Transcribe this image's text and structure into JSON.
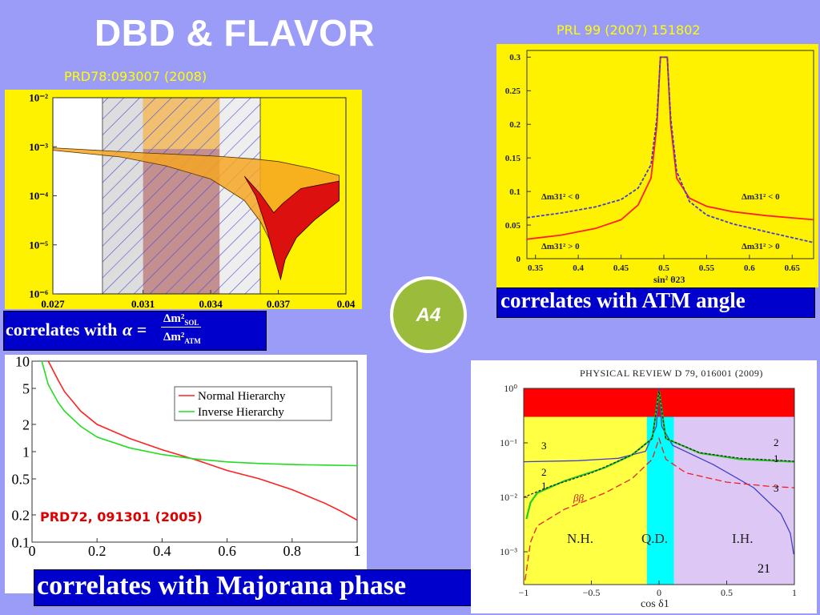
{
  "slide": {
    "title": "DBD & FLAVOR",
    "badge": "A4",
    "page_number": "21",
    "colors": {
      "background": "#9b9cf8",
      "ref_text": "#ffff00",
      "banner": "#0000cc",
      "badge": "#9bbb3a"
    }
  },
  "panels": {
    "top_left": {
      "ref": "PRD78:093007 (2008)",
      "banner_prefix": "correlates with",
      "banner_formula": "α = Δm²SOL / Δm²ATM"
    },
    "top_right": {
      "ref": "PRL 99 (2007) 151802",
      "banner": "correlates with ATM angle",
      "xlabel": "sin² θ23",
      "annotations": [
        "Δm31² < 0",
        "Δm31² > 0",
        "Δm31² < 0",
        "Δm31² > 0"
      ]
    },
    "bottom_left": {
      "ref": "PRD72, 091301 (2005)",
      "banner": "correlates with Majorana phase",
      "legend": [
        "Normal Hierarchy",
        "Inverse Hierarchy"
      ]
    },
    "bottom_right": {
      "header": "PHYSICAL REVIEW D 79, 016001 (2009)",
      "xlabel": "cos δ1",
      "regions": [
        "N.H.",
        "Q.D.",
        "I.H."
      ],
      "curve_labels": [
        "3",
        "2",
        "1",
        "ββ",
        "2",
        "1",
        "3"
      ]
    }
  },
  "chart_data": [
    {
      "id": "alpha_plot",
      "type": "area",
      "x_ticks": [
        "0.027",
        "0.031",
        "0.034",
        "0.037",
        "0.04"
      ],
      "y_ticks": [
        "10⁻²",
        "10⁻³",
        "10⁻⁴",
        "10⁻⁵",
        "10⁻⁶"
      ],
      "xlim": [
        0.027,
        0.04
      ],
      "ylim": [
        1e-06,
        0.01
      ],
      "log_y": true,
      "band_upper": [
        [
          0.027,
          0.00095
        ],
        [
          0.031,
          0.00075
        ],
        [
          0.034,
          0.00065
        ],
        [
          0.0345,
          0.00063
        ],
        [
          0.036,
          0.00056
        ],
        [
          0.037,
          0.0005
        ],
        [
          0.0385,
          0.00036
        ],
        [
          0.0397,
          0.00026
        ]
      ],
      "band_lower": [
        [
          0.027,
          0.00085
        ],
        [
          0.03,
          0.00062
        ],
        [
          0.032,
          0.00041
        ],
        [
          0.034,
          0.00022
        ],
        [
          0.0355,
          8e-05
        ],
        [
          0.0362,
          3e-05
        ],
        [
          0.0366,
          1.3e-05
        ],
        [
          0.0368,
          6e-06
        ],
        [
          0.0371,
          2e-06
        ],
        [
          0.0373,
          5e-06
        ],
        [
          0.0378,
          1.4e-05
        ],
        [
          0.0386,
          3.2e-05
        ],
        [
          0.0397,
          8e-05
        ]
      ],
      "red_upper": [
        [
          0.0355,
          0.00025
        ],
        [
          0.0362,
          0.00011
        ],
        [
          0.0368,
          4.5e-05
        ],
        [
          0.0372,
          7e-05
        ],
        [
          0.038,
          0.00014
        ],
        [
          0.0397,
          0.0002
        ]
      ],
      "red_region": [
        [
          0.0355,
          0.00025
        ],
        [
          0.036,
          0.0001
        ],
        [
          0.0365,
          2e-05
        ],
        [
          0.0368,
          6e-06
        ],
        [
          0.0371,
          2e-06
        ],
        [
          0.0373,
          5e-06
        ],
        [
          0.0378,
          1.4e-05
        ],
        [
          0.0386,
          3.2e-05
        ],
        [
          0.0397,
          8e-05
        ]
      ]
    },
    {
      "id": "atm_angle_plot",
      "type": "line",
      "x_ticks": [
        "0.35",
        "0.4",
        "0.45",
        "0.5",
        "0.55",
        "0.6",
        "0.65"
      ],
      "y_ticks": [
        "0",
        "0.05",
        "0.1",
        "0.15",
        "0.2",
        "0.25",
        "0.3"
      ],
      "xlim": [
        0.34,
        0.675
      ],
      "ylim": [
        0,
        0.31
      ],
      "series": [
        {
          "color": "#ff2020",
          "dash": false,
          "points": [
            [
              0.34,
              0.029
            ],
            [
              0.38,
              0.035
            ],
            [
              0.42,
              0.045
            ],
            [
              0.45,
              0.058
            ],
            [
              0.47,
              0.08
            ],
            [
              0.485,
              0.12
            ],
            [
              0.492,
              0.2
            ],
            [
              0.496,
              0.3
            ],
            [
              0.504,
              0.3
            ],
            [
              0.508,
              0.2
            ],
            [
              0.515,
              0.12
            ],
            [
              0.53,
              0.09
            ],
            [
              0.55,
              0.078
            ],
            [
              0.58,
              0.07
            ],
            [
              0.62,
              0.064
            ],
            [
              0.675,
              0.058
            ]
          ]
        },
        {
          "color": "#4040d0",
          "dash": true,
          "points": [
            [
              0.34,
              0.061
            ],
            [
              0.38,
              0.068
            ],
            [
              0.42,
              0.077
            ],
            [
              0.45,
              0.088
            ],
            [
              0.47,
              0.105
            ],
            [
              0.485,
              0.14
            ],
            [
              0.492,
              0.21
            ],
            [
              0.496,
              0.3
            ],
            [
              0.504,
              0.3
            ],
            [
              0.508,
              0.21
            ],
            [
              0.515,
              0.13
            ],
            [
              0.53,
              0.085
            ],
            [
              0.55,
              0.065
            ],
            [
              0.58,
              0.052
            ],
            [
              0.62,
              0.04
            ],
            [
              0.675,
              0.024
            ]
          ]
        }
      ]
    },
    {
      "id": "majorana_plot",
      "type": "line",
      "x_ticks": [
        "0",
        "0.2",
        "0.4",
        "0.6",
        "0.8",
        "1"
      ],
      "y_ticks": [
        "10",
        "5",
        "2",
        "1",
        "0.5",
        "0.2",
        "0.1"
      ],
      "xlim": [
        0,
        1
      ],
      "ylim": [
        0.1,
        10
      ],
      "log_y": true,
      "series": [
        {
          "name": "Normal Hierarchy",
          "color": "#ff2020",
          "points": [
            [
              0.05,
              10
            ],
            [
              0.08,
              6.2
            ],
            [
              0.1,
              4.6
            ],
            [
              0.15,
              2.8
            ],
            [
              0.2,
              2.0
            ],
            [
              0.3,
              1.4
            ],
            [
              0.4,
              1.05
            ],
            [
              0.5,
              0.82
            ],
            [
              0.6,
              0.62
            ],
            [
              0.7,
              0.5
            ],
            [
              0.8,
              0.38
            ],
            [
              0.9,
              0.27
            ],
            [
              0.95,
              0.22
            ],
            [
              1.0,
              0.175
            ]
          ]
        },
        {
          "name": "Inverse Hierarchy",
          "color": "#22dd22",
          "points": [
            [
              0.03,
              10
            ],
            [
              0.05,
              5.5
            ],
            [
              0.08,
              3.5
            ],
            [
              0.1,
              2.8
            ],
            [
              0.15,
              1.9
            ],
            [
              0.2,
              1.45
            ],
            [
              0.3,
              1.1
            ],
            [
              0.4,
              0.93
            ],
            [
              0.5,
              0.83
            ],
            [
              0.6,
              0.77
            ],
            [
              0.7,
              0.74
            ],
            [
              0.8,
              0.72
            ],
            [
              0.9,
              0.71
            ],
            [
              1.0,
              0.7
            ]
          ]
        }
      ]
    },
    {
      "id": "cos_delta_plot",
      "type": "line",
      "x_ticks": [
        "−1",
        "−0.5",
        "0",
        "0.5",
        "1"
      ],
      "y_ticks": [
        "10⁰",
        "10⁻¹",
        "10⁻²",
        "10⁻³"
      ],
      "xlim": [
        -1,
        1
      ],
      "ylim": [
        0.00025,
        1
      ],
      "log_y": true,
      "bands": [
        {
          "from": -1,
          "to": -0.09,
          "color": "#ffff44"
        },
        {
          "from": -0.09,
          "to": 0.11,
          "color": "#00ffff"
        },
        {
          "from": 0.11,
          "to": 1,
          "color": "#ddc8f5"
        },
        {
          "ymin": 0.3,
          "ymax": 1,
          "color": "#ff0000"
        }
      ],
      "series": [
        {
          "color": "#4040c8",
          "points": [
            [
              -1,
              0.045
            ],
            [
              -0.6,
              0.047
            ],
            [
              -0.3,
              0.052
            ],
            [
              -0.1,
              0.07
            ],
            [
              -0.02,
              0.2
            ],
            [
              0,
              1
            ],
            [
              0.02,
              0.2
            ],
            [
              0.1,
              0.09
            ],
            [
              0.4,
              0.04
            ],
            [
              0.7,
              0.015
            ],
            [
              0.9,
              0.005
            ],
            [
              0.97,
              0.0022
            ],
            [
              0.995,
              0.0009
            ]
          ]
        },
        {
          "color": "#22cc22",
          "points": [
            [
              -0.98,
              0.004
            ],
            [
              -0.95,
              0.008
            ],
            [
              -0.9,
              0.012
            ],
            [
              -0.7,
              0.02
            ],
            [
              -0.4,
              0.035
            ],
            [
              -0.2,
              0.06
            ],
            [
              -0.05,
              0.12
            ],
            [
              0,
              0.9
            ],
            [
              0.05,
              0.12
            ],
            [
              0.3,
              0.065
            ],
            [
              0.6,
              0.05
            ],
            [
              1,
              0.045
            ]
          ]
        },
        {
          "color": "#202020",
          "dash": true,
          "points": [
            [
              -1,
              0.01
            ],
            [
              -0.8,
              0.016
            ],
            [
              -0.5,
              0.028
            ],
            [
              -0.2,
              0.06
            ],
            [
              -0.05,
              0.12
            ],
            [
              0,
              0.9
            ],
            [
              0.05,
              0.12
            ],
            [
              0.3,
              0.066
            ],
            [
              0.6,
              0.052
            ],
            [
              1,
              0.046
            ]
          ]
        },
        {
          "color": "#ee2020",
          "dash": true,
          "points": [
            [
              -0.99,
              0.0003
            ],
            [
              -0.95,
              0.0015
            ],
            [
              -0.9,
              0.003
            ],
            [
              -0.7,
              0.006
            ],
            [
              -0.4,
              0.012
            ],
            [
              -0.2,
              0.022
            ],
            [
              -0.05,
              0.05
            ],
            [
              0,
              0.12
            ],
            [
              0.05,
              0.05
            ],
            [
              0.2,
              0.028
            ],
            [
              0.5,
              0.019
            ],
            [
              0.8,
              0.016
            ],
            [
              1,
              0.015
            ]
          ]
        }
      ]
    }
  ]
}
